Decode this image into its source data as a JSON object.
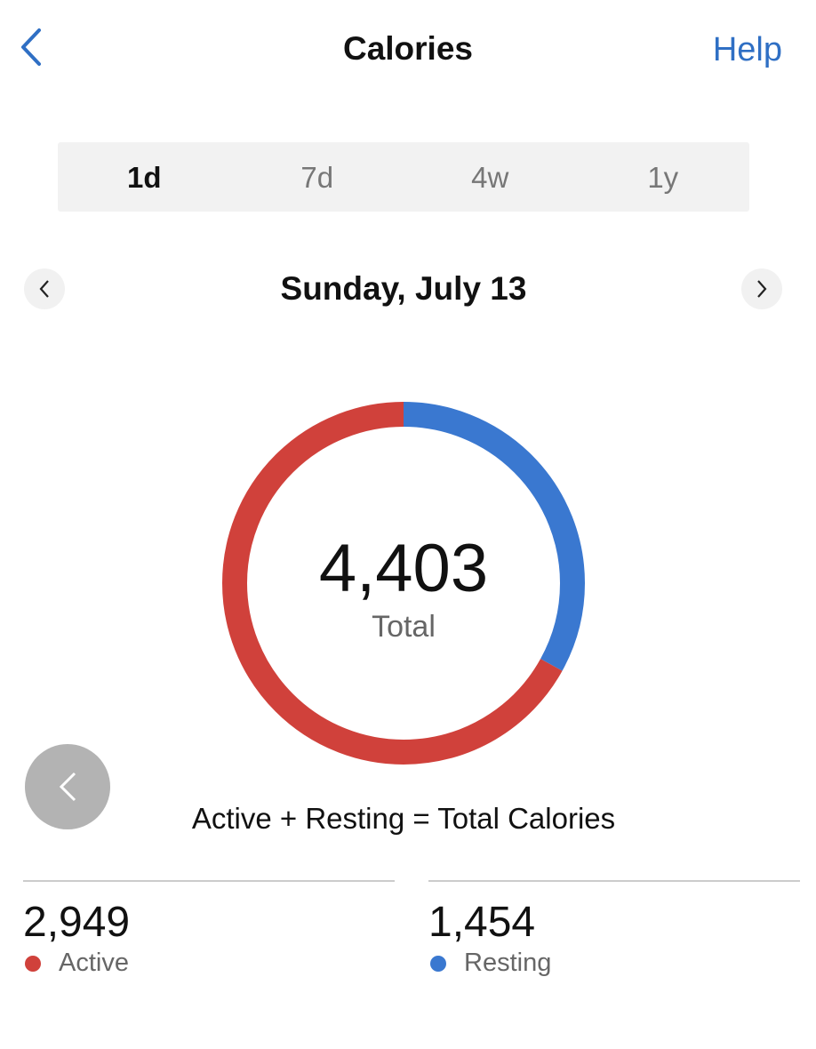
{
  "header": {
    "title": "Calories",
    "help_label": "Help"
  },
  "range_tabs": [
    {
      "label": "1d",
      "active": true
    },
    {
      "label": "7d",
      "active": false
    },
    {
      "label": "4w",
      "active": false
    },
    {
      "label": "1y",
      "active": false
    }
  ],
  "date": "Sunday, July 13",
  "summary": {
    "total": "4,403",
    "total_label": "Total",
    "formula": "Active + Resting = Total Calories"
  },
  "stats": [
    {
      "value": "2,949",
      "label": "Active",
      "color": "#d0413b"
    },
    {
      "value": "1,454",
      "label": "Resting",
      "color": "#3a78d0"
    }
  ],
  "chart_data": {
    "type": "pie",
    "style": "donut",
    "categories": [
      "Resting",
      "Active"
    ],
    "values": [
      1454,
      2949
    ],
    "colors": [
      "#3a78d0",
      "#d0413b"
    ]
  }
}
